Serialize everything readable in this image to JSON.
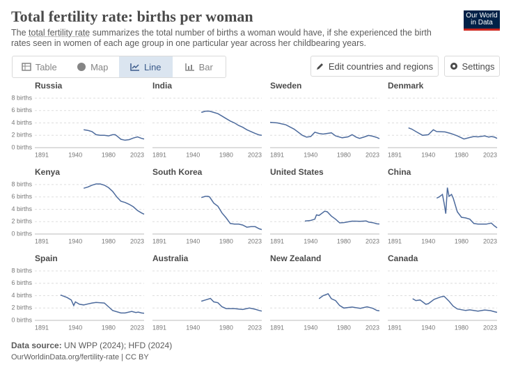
{
  "header": {
    "title": "Total fertility rate: births per woman",
    "subtitle_start": "The ",
    "subtitle_link": "total fertility rate",
    "subtitle_end": " summarizes the total number of births a woman would have, if she experienced the birth rates seen in women of each age group in one particular year across her childbearing years.",
    "logo_line1": "Our World",
    "logo_line2": "in Data"
  },
  "tabs": [
    "Table",
    "Map",
    "Line",
    "Bar"
  ],
  "active_tab": 2,
  "buttons": [
    "Edit countries and regions",
    "Settings"
  ],
  "chart_data": [
    {
      "type": "line",
      "title": "Russia",
      "color": "#4c6a9c",
      "x": [
        1950,
        1955,
        1960,
        1965,
        1970,
        1975,
        1980,
        1985,
        1988,
        1990,
        1995,
        2000,
        2005,
        2010,
        2015,
        2020,
        2023
      ],
      "values": [
        2.9,
        2.8,
        2.6,
        2.1,
        2.0,
        2.0,
        1.9,
        2.1,
        2.1,
        1.9,
        1.35,
        1.2,
        1.3,
        1.55,
        1.75,
        1.5,
        1.4
      ],
      "xlim": [
        1891,
        2023
      ],
      "xticks": [
        1891,
        1940,
        1980,
        2023
      ],
      "ylim": [
        0,
        8
      ],
      "yticks": [
        {
          "value": 0,
          "label": "0 births"
        },
        {
          "value": 2,
          "label": "2 births"
        },
        {
          "value": 4,
          "label": "4 births"
        },
        {
          "value": 6,
          "label": "6 births"
        },
        {
          "value": 8,
          "label": "8 births"
        }
      ],
      "grid": true
    },
    {
      "type": "line",
      "title": "India",
      "color": "#4c6a9c",
      "x": [
        1950,
        1955,
        1960,
        1965,
        1970,
        1975,
        1980,
        1985,
        1990,
        1995,
        2000,
        2005,
        2010,
        2015,
        2020,
        2023
      ],
      "values": [
        5.7,
        5.9,
        5.9,
        5.7,
        5.5,
        5.1,
        4.7,
        4.3,
        4.0,
        3.6,
        3.3,
        2.9,
        2.6,
        2.3,
        2.05,
        2.0
      ],
      "xlim": [
        1891,
        2023
      ],
      "xticks": [
        1891,
        1940,
        1980,
        2023
      ],
      "ylim": [
        0,
        8
      ],
      "yticks": [
        0,
        2,
        4,
        6,
        8
      ],
      "grid": true
    },
    {
      "type": "line",
      "title": "Sweden",
      "color": "#4c6a9c",
      "x": [
        1891,
        1900,
        1910,
        1920,
        1930,
        1935,
        1940,
        1945,
        1950,
        1955,
        1965,
        1970,
        1978,
        1985,
        1990,
        1995,
        1999,
        2005,
        2010,
        2015,
        2020,
        2023
      ],
      "values": [
        4.1,
        4.0,
        3.7,
        3.0,
        2.0,
        1.7,
        1.8,
        2.5,
        2.3,
        2.2,
        2.4,
        1.9,
        1.6,
        1.75,
        2.1,
        1.7,
        1.5,
        1.75,
        1.98,
        1.85,
        1.65,
        1.45
      ],
      "xlim": [
        1891,
        2023
      ],
      "xticks": [
        1891,
        1940,
        1980,
        2023
      ],
      "ylim": [
        0,
        8
      ],
      "yticks": [
        0,
        2,
        4,
        6,
        8
      ],
      "grid": true
    },
    {
      "type": "line",
      "title": "Denmark",
      "color": "#4c6a9c",
      "x": [
        1916,
        1920,
        1925,
        1933,
        1940,
        1946,
        1950,
        1960,
        1967,
        1975,
        1983,
        1990,
        1995,
        2000,
        2008,
        2013,
        2016,
        2020,
        2023
      ],
      "values": [
        3.2,
        3.0,
        2.6,
        2.0,
        2.1,
        2.9,
        2.6,
        2.55,
        2.3,
        1.9,
        1.4,
        1.65,
        1.8,
        1.75,
        1.9,
        1.7,
        1.8,
        1.7,
        1.5
      ],
      "xlim": [
        1891,
        2023
      ],
      "xticks": [
        1891,
        1940,
        1980,
        2023
      ],
      "ylim": [
        0,
        8
      ],
      "yticks": [
        0,
        2,
        4,
        6,
        8
      ],
      "grid": true
    },
    {
      "type": "line",
      "title": "Kenya",
      "color": "#4c6a9c",
      "x": [
        1950,
        1955,
        1960,
        1965,
        1970,
        1975,
        1980,
        1985,
        1990,
        1995,
        2000,
        2005,
        2010,
        2015,
        2020,
        2023
      ],
      "values": [
        7.4,
        7.6,
        7.9,
        8.1,
        8.1,
        7.9,
        7.5,
        6.9,
        6.0,
        5.3,
        5.1,
        4.8,
        4.4,
        3.8,
        3.4,
        3.2
      ],
      "xlim": [
        1891,
        2023
      ],
      "xticks": [
        1891,
        1940,
        1980,
        2023
      ],
      "ylim": [
        0,
        8
      ],
      "yticks": [
        {
          "value": 0,
          "label": "0 births"
        },
        {
          "value": 2,
          "label": "2 births"
        },
        {
          "value": 4,
          "label": "4 births"
        },
        {
          "value": 6,
          "label": "6 births"
        },
        {
          "value": 8,
          "label": "8 births"
        }
      ],
      "grid": true
    },
    {
      "type": "line",
      "title": "South Korea",
      "color": "#4c6a9c",
      "x": [
        1950,
        1955,
        1958,
        1960,
        1965,
        1970,
        1975,
        1980,
        1985,
        1990,
        1995,
        2000,
        2005,
        2010,
        2015,
        2020,
        2023
      ],
      "values": [
        5.9,
        6.1,
        6.1,
        6.0,
        5.0,
        4.5,
        3.4,
        2.6,
        1.7,
        1.6,
        1.6,
        1.45,
        1.1,
        1.2,
        1.2,
        0.84,
        0.72
      ],
      "xlim": [
        1891,
        2023
      ],
      "xticks": [
        1891,
        1940,
        1980,
        2023
      ],
      "ylim": [
        0,
        8
      ],
      "yticks": [
        0,
        2,
        4,
        6,
        8
      ],
      "grid": true
    },
    {
      "type": "line",
      "title": "United States",
      "color": "#4c6a9c",
      "x": [
        1933,
        1940,
        1945,
        1947,
        1950,
        1957,
        1960,
        1965,
        1970,
        1975,
        1980,
        1990,
        2000,
        2007,
        2010,
        2015,
        2020,
        2023
      ],
      "values": [
        2.1,
        2.2,
        2.4,
        3.1,
        3.0,
        3.7,
        3.6,
        2.9,
        2.4,
        1.8,
        1.85,
        2.08,
        2.05,
        2.12,
        1.93,
        1.84,
        1.64,
        1.62
      ],
      "xlim": [
        1891,
        2023
      ],
      "xticks": [
        1891,
        1940,
        1980,
        2023
      ],
      "ylim": [
        0,
        8
      ],
      "yticks": [
        0,
        2,
        4,
        6,
        8
      ],
      "grid": true
    },
    {
      "type": "line",
      "title": "China",
      "color": "#4c6a9c",
      "x": [
        1950,
        1953,
        1957,
        1959,
        1961,
        1963,
        1965,
        1968,
        1970,
        1975,
        1980,
        1985,
        1990,
        1995,
        2000,
        2010,
        2016,
        2020,
        2023
      ],
      "values": [
        5.8,
        6.0,
        6.4,
        5.0,
        3.3,
        7.5,
        6.1,
        6.4,
        5.8,
        3.6,
        2.7,
        2.6,
        2.4,
        1.7,
        1.6,
        1.6,
        1.77,
        1.3,
        1.0
      ],
      "xlim": [
        1891,
        2023
      ],
      "xticks": [
        1891,
        1940,
        1980,
        2023
      ],
      "ylim": [
        0,
        8
      ],
      "yticks": [
        0,
        2,
        4,
        6,
        8
      ],
      "grid": true
    },
    {
      "type": "line",
      "title": "Spain",
      "color": "#4c6a9c",
      "x": [
        1922,
        1930,
        1935,
        1938,
        1940,
        1945,
        1950,
        1960,
        1965,
        1975,
        1980,
        1985,
        1995,
        2000,
        2008,
        2013,
        2016,
        2020,
        2023
      ],
      "values": [
        4.1,
        3.7,
        3.3,
        2.4,
        3.0,
        2.6,
        2.5,
        2.8,
        2.9,
        2.8,
        2.2,
        1.6,
        1.2,
        1.2,
        1.45,
        1.27,
        1.34,
        1.2,
        1.15
      ],
      "xlim": [
        1891,
        2023
      ],
      "xticks": [
        1891,
        1940,
        1980,
        2023
      ],
      "ylim": [
        0,
        8
      ],
      "yticks": [
        {
          "value": 0,
          "label": "0 births"
        },
        {
          "value": 2,
          "label": "2 births"
        },
        {
          "value": 4,
          "label": "4 births"
        },
        {
          "value": 6,
          "label": "6 births"
        },
        {
          "value": 8,
          "label": "8 births"
        }
      ],
      "grid": true
    },
    {
      "type": "line",
      "title": "Australia",
      "color": "#4c6a9c",
      "x": [
        1950,
        1955,
        1961,
        1965,
        1970,
        1975,
        1980,
        1990,
        2000,
        2008,
        2015,
        2020,
        2023
      ],
      "values": [
        3.1,
        3.3,
        3.55,
        3.0,
        2.85,
        2.2,
        1.9,
        1.9,
        1.76,
        2.0,
        1.8,
        1.6,
        1.5
      ],
      "xlim": [
        1891,
        2023
      ],
      "xticks": [
        1891,
        1940,
        1980,
        2023
      ],
      "ylim": [
        0,
        8
      ],
      "yticks": [
        0,
        2,
        4,
        6,
        8
      ],
      "grid": true
    },
    {
      "type": "line",
      "title": "New Zealand",
      "color": "#4c6a9c",
      "x": [
        1950,
        1955,
        1961,
        1965,
        1970,
        1975,
        1980,
        1990,
        2000,
        2008,
        2015,
        2020,
        2023
      ],
      "values": [
        3.5,
        4.0,
        4.3,
        3.5,
        3.2,
        2.4,
        2.0,
        2.15,
        1.95,
        2.2,
        1.95,
        1.6,
        1.55
      ],
      "xlim": [
        1891,
        2023
      ],
      "xticks": [
        1891,
        1940,
        1980,
        2023
      ],
      "ylim": [
        0,
        8
      ],
      "yticks": [
        0,
        2,
        4,
        6,
        8
      ],
      "grid": true
    },
    {
      "type": "line",
      "title": "Canada",
      "color": "#4c6a9c",
      "x": [
        1921,
        1925,
        1930,
        1937,
        1940,
        1947,
        1955,
        1959,
        1965,
        1970,
        1975,
        1985,
        1990,
        2000,
        2008,
        2015,
        2020,
        2023
      ],
      "values": [
        3.5,
        3.2,
        3.3,
        2.6,
        2.7,
        3.4,
        3.8,
        3.9,
        3.1,
        2.3,
        1.85,
        1.6,
        1.7,
        1.5,
        1.68,
        1.58,
        1.4,
        1.3
      ],
      "xlim": [
        1891,
        2023
      ],
      "xticks": [
        1891,
        1940,
        1980,
        2023
      ],
      "ylim": [
        0,
        8
      ],
      "yticks": [
        0,
        2,
        4,
        6,
        8
      ],
      "grid": true
    }
  ],
  "footer": {
    "source_label": "Data source:",
    "source": " UN WPP (2024); HFD (2024)",
    "url": "OurWorldinData.org/fertility-rate | CC BY"
  }
}
